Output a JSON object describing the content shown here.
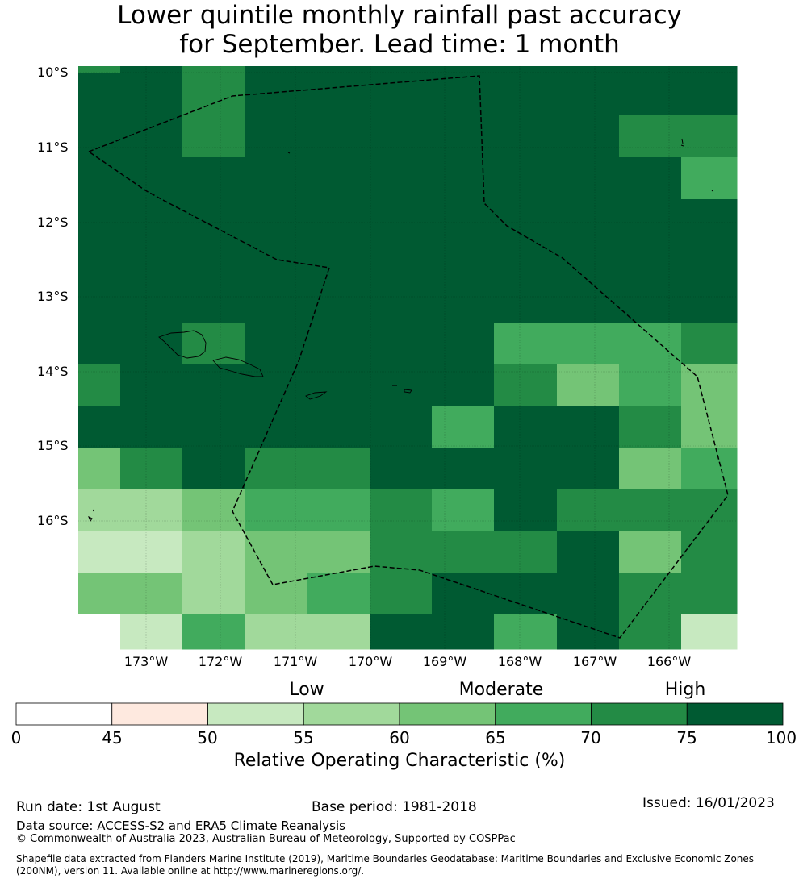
{
  "header": {
    "title_line1": "Lower quintile monthly rainfall past accuracy",
    "title_line2": "for September. Lead time: 1 month"
  },
  "map": {
    "lat_labels": [
      "10°S",
      "11°S",
      "12°S",
      "13°S",
      "14°S",
      "15°S",
      "16°S"
    ],
    "lon_labels": [
      "173°W",
      "172°W",
      "171°W",
      "170°W",
      "169°W",
      "168°W",
      "167°W",
      "166°W"
    ],
    "grid_values": [
      [
        70,
        75,
        70,
        75,
        75,
        75,
        75,
        75,
        75,
        75,
        75
      ],
      [
        75,
        75,
        70,
        75,
        75,
        75,
        75,
        75,
        75,
        70,
        70
      ],
      [
        75,
        75,
        75,
        75,
        75,
        75,
        75,
        75,
        75,
        75,
        65
      ],
      [
        75,
        75,
        75,
        75,
        75,
        75,
        75,
        75,
        75,
        75,
        75
      ],
      [
        75,
        75,
        75,
        75,
        75,
        75,
        75,
        75,
        75,
        75,
        75
      ],
      [
        75,
        75,
        75,
        75,
        75,
        75,
        75,
        75,
        75,
        75,
        75
      ],
      [
        75,
        75,
        70,
        75,
        75,
        75,
        75,
        65,
        65,
        65,
        70
      ],
      [
        70,
        75,
        75,
        75,
        75,
        75,
        75,
        70,
        60,
        65,
        60
      ],
      [
        75,
        75,
        75,
        75,
        75,
        75,
        65,
        75,
        75,
        70,
        60
      ],
      [
        60,
        70,
        75,
        70,
        70,
        75,
        75,
        75,
        75,
        60,
        65
      ],
      [
        55,
        55,
        60,
        65,
        65,
        70,
        65,
        75,
        70,
        70,
        70
      ],
      [
        50,
        50,
        55,
        60,
        60,
        70,
        70,
        70,
        75,
        60,
        70
      ],
      [
        60,
        60,
        55,
        60,
        65,
        70,
        75,
        75,
        75,
        70,
        70
      ],
      [
        null,
        50,
        65,
        55,
        55,
        75,
        75,
        65,
        75,
        70,
        50
      ]
    ]
  },
  "legend": {
    "category_low": "Low",
    "category_moderate": "Moderate",
    "category_high": "High",
    "bins": [
      0,
      45,
      50,
      55,
      60,
      65,
      70,
      75,
      100
    ],
    "bin_labels": [
      "0",
      "45",
      "50",
      "55",
      "60",
      "65",
      "70",
      "75",
      "100"
    ],
    "colors": [
      "#ffffff",
      "#fee9df",
      "#c7e9c0",
      "#a1d99b",
      "#74c476",
      "#41ab5d",
      "#238b45",
      "#005a32"
    ],
    "axis_label": "Relative Operating Characteristic (%)"
  },
  "footer": {
    "run_date": "Run date: 1st August",
    "base_period": "Base period: 1981-2018",
    "issued": "Issued: 16/01/2023",
    "data_source": "Data source: ACCESS-S2 and ERA5 Climate Reanalysis",
    "copyright": "© Commonwealth of Australia 2023, Australian Bureau of Meteorology, Supported by COSPPac",
    "shapefile_line1": "Shapefile data extracted from Flanders Marine Institute (2019), Maritime Boundaries Geodatabase: Maritime Boundaries and Exclusive Economic Zones",
    "shapefile_line2": "(200NM), version 11. Available online at http://www.marineregions.org/."
  }
}
